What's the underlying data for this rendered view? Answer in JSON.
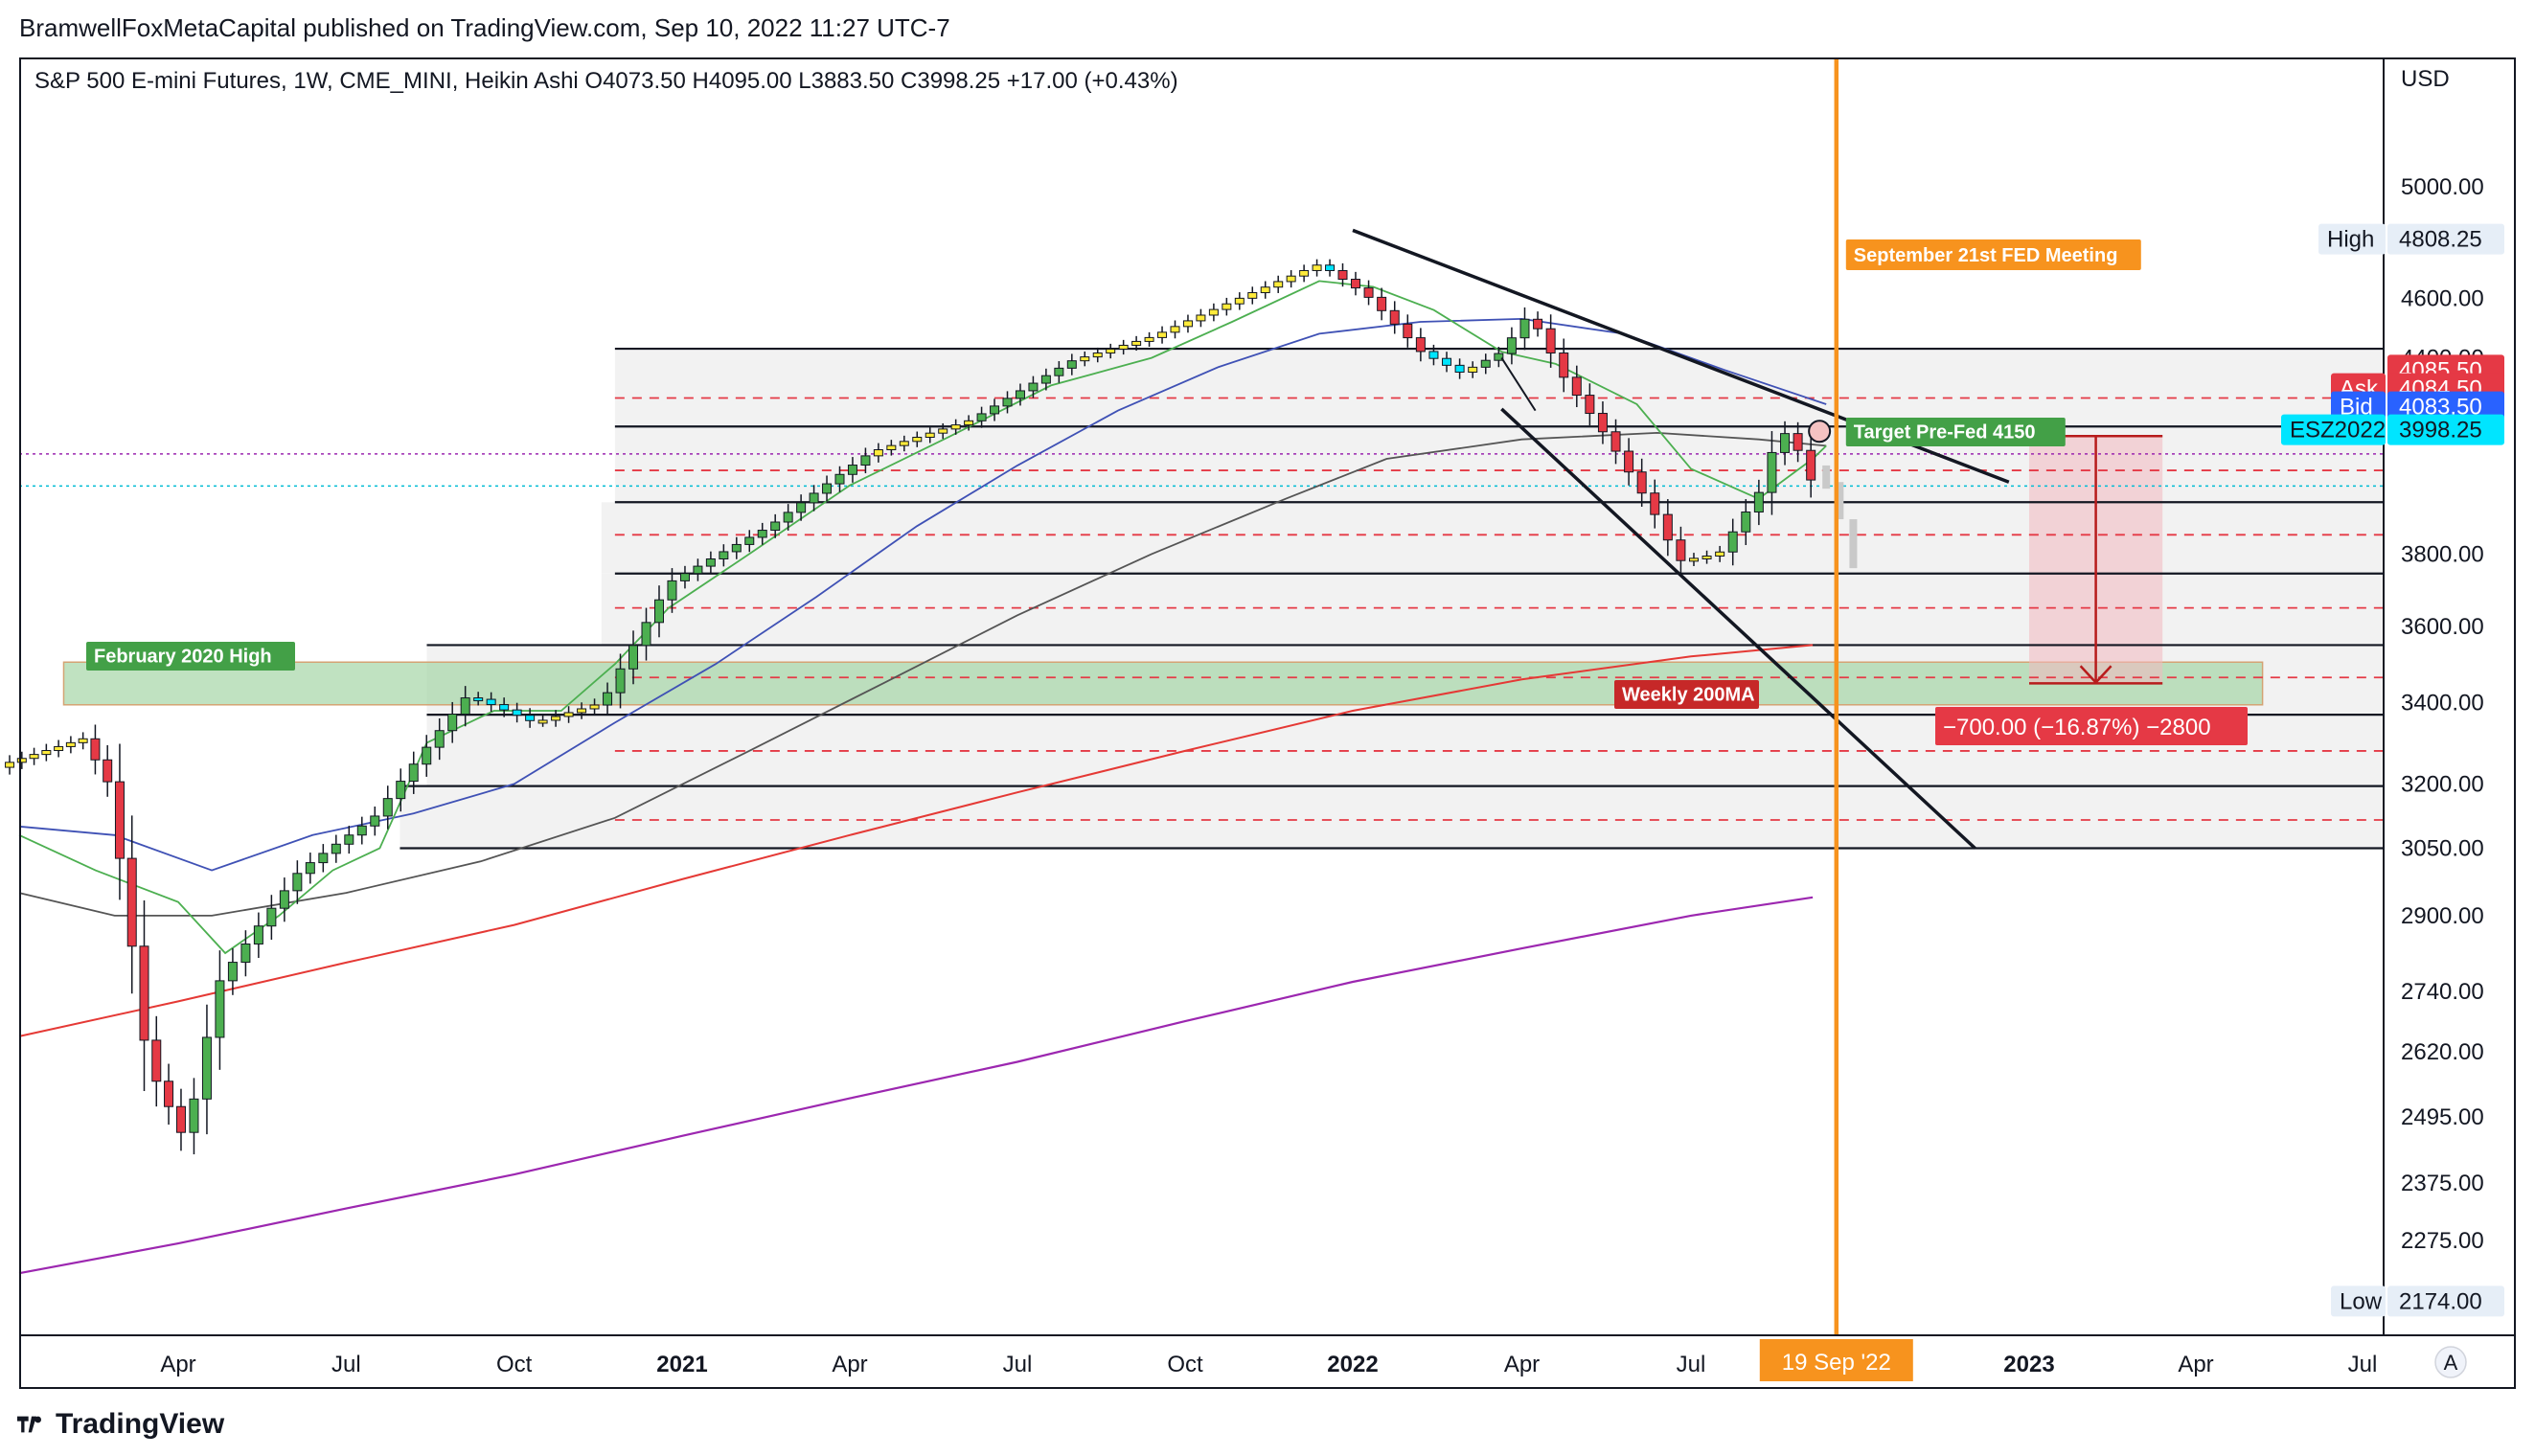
{
  "publish_line": "BramwellFoxMetaCapital published on TradingView.com, Sep 10, 2022 11:27 UTC-7",
  "footer": {
    "brand": "TradingView"
  },
  "colors": {
    "up": "#4caf50",
    "down": "#e53945",
    "yellow": "#ffeb3b",
    "cyan": "#00e5ff",
    "orange": "#f7931e",
    "ema20": "#4caf50",
    "ema50": "#3f51b5",
    "ema100": "#555555",
    "ma200": "#e53935",
    "ma_long": "#9c27b0",
    "zone_green": "#a5d6a7",
    "target_box": "#f2b8bf"
  },
  "chart_data": {
    "type": "candlestick",
    "title": "S&P 500 E-mini Futures, 1W, CME_MINI, Heikin Ashi",
    "ohlc_readout": {
      "O": "O4073.50",
      "H": "H4095.00",
      "L": "L3883.50",
      "C": "C3998.25",
      "change": "+17.00 (+0.43%)"
    },
    "currency": "USD",
    "y_scale": "log",
    "y_ticks": [
      "5000.00",
      "4600.00",
      "4400.00",
      "3800.00",
      "3600.00",
      "3400.00",
      "3200.00",
      "3050.00",
      "2900.00",
      "2740.00",
      "2620.00",
      "2495.00",
      "2375.00",
      "2275.00"
    ],
    "x_ticks": [
      {
        "label": "Apr",
        "bold": false
      },
      {
        "label": "Jul",
        "bold": false
      },
      {
        "label": "Oct",
        "bold": false
      },
      {
        "label": "2021",
        "bold": true
      },
      {
        "label": "Apr",
        "bold": false
      },
      {
        "label": "Jul",
        "bold": false
      },
      {
        "label": "Oct",
        "bold": false
      },
      {
        "label": "2022",
        "bold": true
      },
      {
        "label": "Apr",
        "bold": false
      },
      {
        "label": "Jul",
        "bold": false
      },
      {
        "label": "2023",
        "bold": true
      },
      {
        "label": "Apr",
        "bold": false
      },
      {
        "label": "Jul",
        "bold": false
      }
    ],
    "price_labels": {
      "high": {
        "name": "High",
        "value": "4808.25"
      },
      "low": {
        "name": "Low",
        "value": "2174.00"
      },
      "last": {
        "value": "4085.50"
      },
      "ask": {
        "name": "Ask",
        "value": "4084.50"
      },
      "bid": {
        "name": "Bid",
        "value": "4083.50"
      },
      "symbol": {
        "name": "ESZ2022",
        "value": "3998.25"
      }
    },
    "time_label": "19 Sep '22",
    "annotations": {
      "fed": "September 21st FED Meeting",
      "target": "Target Pre-Fed 4150",
      "feb_high": "February 2020 High",
      "ma200": "Weekly 200MA",
      "measure": "−700.00 (−16.87%) −2800"
    },
    "levels_solid": [
      4430,
      4180,
      3950,
      3745,
      3550,
      3370,
      3195,
      3050
    ],
    "levels_dashed": [
      4270,
      4045,
      3855,
      3650,
      3465,
      3280,
      3115
    ],
    "ema20": [
      [
        2020.0,
        3080
      ],
      [
        2020.12,
        3000
      ],
      [
        2020.25,
        2930
      ],
      [
        2020.32,
        2820
      ],
      [
        2020.4,
        2900
      ],
      [
        2020.48,
        3000
      ],
      [
        2020.55,
        3050
      ],
      [
        2020.62,
        3300
      ],
      [
        2020.72,
        3380
      ],
      [
        2020.82,
        3380
      ],
      [
        2020.9,
        3500
      ],
      [
        2020.98,
        3650
      ],
      [
        2021.1,
        3800
      ],
      [
        2021.25,
        4000
      ],
      [
        2021.4,
        4150
      ],
      [
        2021.55,
        4310
      ],
      [
        2021.7,
        4400
      ],
      [
        2021.82,
        4520
      ],
      [
        2021.95,
        4660
      ],
      [
        2022.03,
        4640
      ],
      [
        2022.12,
        4560
      ],
      [
        2022.22,
        4420
      ],
      [
        2022.3,
        4380
      ],
      [
        2022.42,
        4250
      ],
      [
        2022.5,
        4050
      ],
      [
        2022.6,
        3960
      ],
      [
        2022.68,
        4080
      ],
      [
        2022.7,
        4120
      ]
    ],
    "ema50": [
      [
        2020.0,
        3100
      ],
      [
        2020.15,
        3080
      ],
      [
        2020.3,
        3000
      ],
      [
        2020.45,
        3080
      ],
      [
        2020.6,
        3130
      ],
      [
        2020.75,
        3200
      ],
      [
        2020.9,
        3350
      ],
      [
        2021.05,
        3500
      ],
      [
        2021.2,
        3680
      ],
      [
        2021.35,
        3880
      ],
      [
        2021.5,
        4060
      ],
      [
        2021.65,
        4230
      ],
      [
        2021.8,
        4370
      ],
      [
        2021.95,
        4480
      ],
      [
        2022.1,
        4520
      ],
      [
        2022.25,
        4530
      ],
      [
        2022.4,
        4480
      ],
      [
        2022.55,
        4360
      ],
      [
        2022.7,
        4250
      ]
    ],
    "ema100": [
      [
        2020.0,
        2950
      ],
      [
        2020.15,
        2900
      ],
      [
        2020.3,
        2900
      ],
      [
        2020.5,
        2950
      ],
      [
        2020.7,
        3020
      ],
      [
        2020.9,
        3120
      ],
      [
        2021.1,
        3280
      ],
      [
        2021.3,
        3450
      ],
      [
        2021.5,
        3630
      ],
      [
        2021.7,
        3800
      ],
      [
        2021.9,
        3960
      ],
      [
        2022.05,
        4080
      ],
      [
        2022.25,
        4140
      ],
      [
        2022.45,
        4160
      ],
      [
        2022.6,
        4140
      ],
      [
        2022.7,
        4120
      ]
    ],
    "ma200": [
      [
        2020.0,
        2650
      ],
      [
        2020.25,
        2720
      ],
      [
        2020.5,
        2800
      ],
      [
        2020.75,
        2880
      ],
      [
        2021.0,
        2980
      ],
      [
        2021.25,
        3080
      ],
      [
        2021.5,
        3180
      ],
      [
        2021.75,
        3280
      ],
      [
        2022.0,
        3380
      ],
      [
        2022.25,
        3460
      ],
      [
        2022.5,
        3520
      ],
      [
        2022.68,
        3550
      ]
    ],
    "ma_long": [
      [
        2020.0,
        2220
      ],
      [
        2020.25,
        2270
      ],
      [
        2020.5,
        2330
      ],
      [
        2020.75,
        2390
      ],
      [
        2021.0,
        2460
      ],
      [
        2021.25,
        2530
      ],
      [
        2021.5,
        2600
      ],
      [
        2021.75,
        2680
      ],
      [
        2022.0,
        2760
      ],
      [
        2022.25,
        2830
      ],
      [
        2022.5,
        2900
      ],
      [
        2022.68,
        2940
      ]
    ]
  }
}
